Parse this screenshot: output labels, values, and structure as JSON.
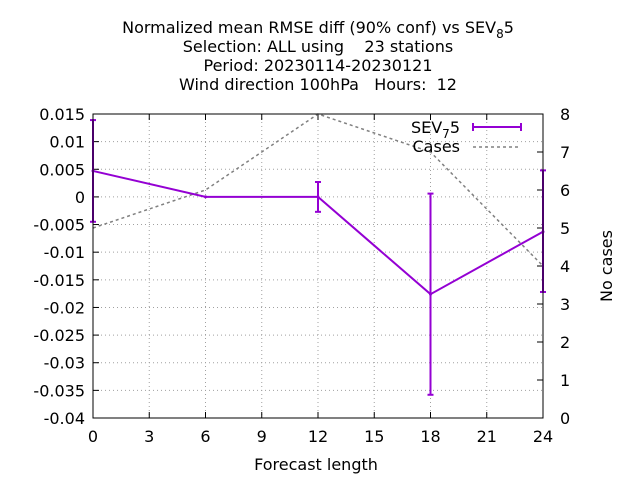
{
  "chart_data": {
    "type": "line",
    "title_lines": [
      "Normalized mean RMSE diff (90% conf) vs SEV",
      "Selection: ALL using    23 stations",
      "Period: 20230114-20230121",
      "Wind direction 100hPa   Hours:  12"
    ],
    "title_sub": "8",
    "title_tail": "5",
    "xlabel": "Forecast length",
    "ylabel": "",
    "y2label": "No cases",
    "xlim": [
      0,
      24
    ],
    "ylim": [
      -0.04,
      0.015
    ],
    "y2lim": [
      0,
      8
    ],
    "xticks": [
      "0",
      "3",
      "6",
      "9",
      "12",
      "15",
      "18",
      "21",
      "24"
    ],
    "yticks": [
      "0.015",
      "0.01",
      "0.005",
      "0",
      "-0.005",
      "-0.01",
      "-0.015",
      "-0.02",
      "-0.025",
      "-0.03",
      "-0.035",
      "-0.04"
    ],
    "y2ticks": [
      "8",
      "7",
      "6",
      "5",
      "4",
      "3",
      "2",
      "1",
      "0"
    ],
    "grid": true,
    "legend_position": "top-right",
    "series": [
      {
        "name": "SEV",
        "name_sub": "7",
        "name_tail": "5",
        "color": "#9400d3",
        "x": [
          0,
          6,
          12,
          18,
          24
        ],
        "y": [
          0.0047,
          0.0,
          0.0,
          -0.0176,
          -0.0063
        ],
        "err_low": [
          -0.0045,
          0.0,
          -0.0027,
          -0.0358,
          -0.0172
        ],
        "err_high": [
          0.0139,
          0.0,
          0.0027,
          0.0006,
          0.0048
        ]
      },
      {
        "name": "Cases",
        "color": "#808080",
        "axis": "right",
        "x": [
          0,
          6,
          12,
          18,
          24
        ],
        "y": [
          5,
          6,
          8,
          7,
          4
        ]
      }
    ]
  }
}
